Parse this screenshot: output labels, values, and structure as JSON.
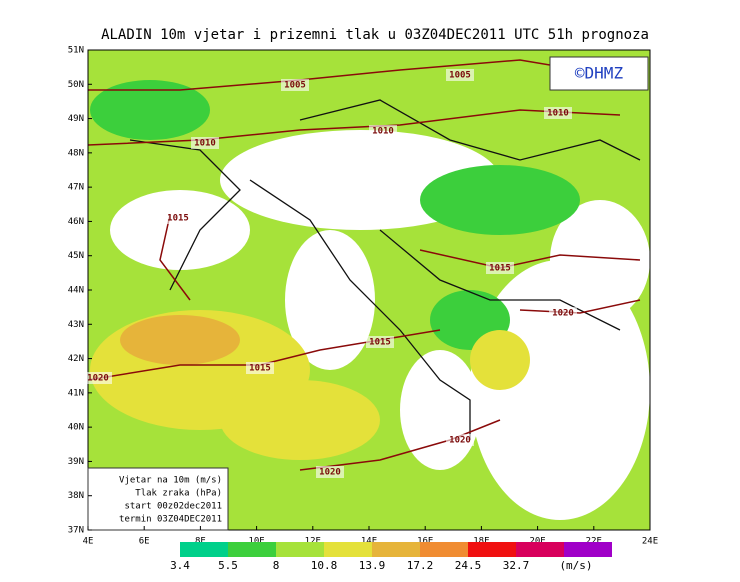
{
  "header": {
    "title": "ALADIN 10m vjetar i prizemni tlak u 03Z04DEC2011 UTC 51h prognoza",
    "copyright": "©DHMZ"
  },
  "latitude_labels": [
    "51N",
    "50N",
    "49N",
    "48N",
    "47N",
    "46N",
    "45N",
    "44N",
    "43N",
    "42N",
    "41N",
    "40N",
    "39N",
    "38N",
    "37N"
  ],
  "longitude_labels": [
    "4E",
    "6E",
    "8E",
    "10E",
    "12E",
    "14E",
    "16E",
    "18E",
    "20E",
    "22E",
    "24E"
  ],
  "isobar_labels": [
    "1005",
    "1005",
    "1010",
    "1010",
    "1010",
    "1015",
    "1015",
    "1015",
    "1015",
    "1020",
    "1020",
    "1020",
    "1020"
  ],
  "legend_box": [
    "Vjetar na 10m (m/s)",
    "Tlak zraka (hPa)",
    "start 00z02dec2011",
    "termin 03Z04DEC2011"
  ],
  "colorbar": {
    "labels": [
      "3.4",
      "5.5",
      "8",
      "10.8",
      "13.9",
      "17.2",
      "24.5",
      "32.7"
    ],
    "unit": "(m/s)",
    "colors": [
      "#00d08a",
      "#3ccf3c",
      "#a6e23a",
      "#e4e13a",
      "#e6b43a",
      "#f08c32",
      "#f01010",
      "#d8005c",
      "#a000c8"
    ]
  }
}
